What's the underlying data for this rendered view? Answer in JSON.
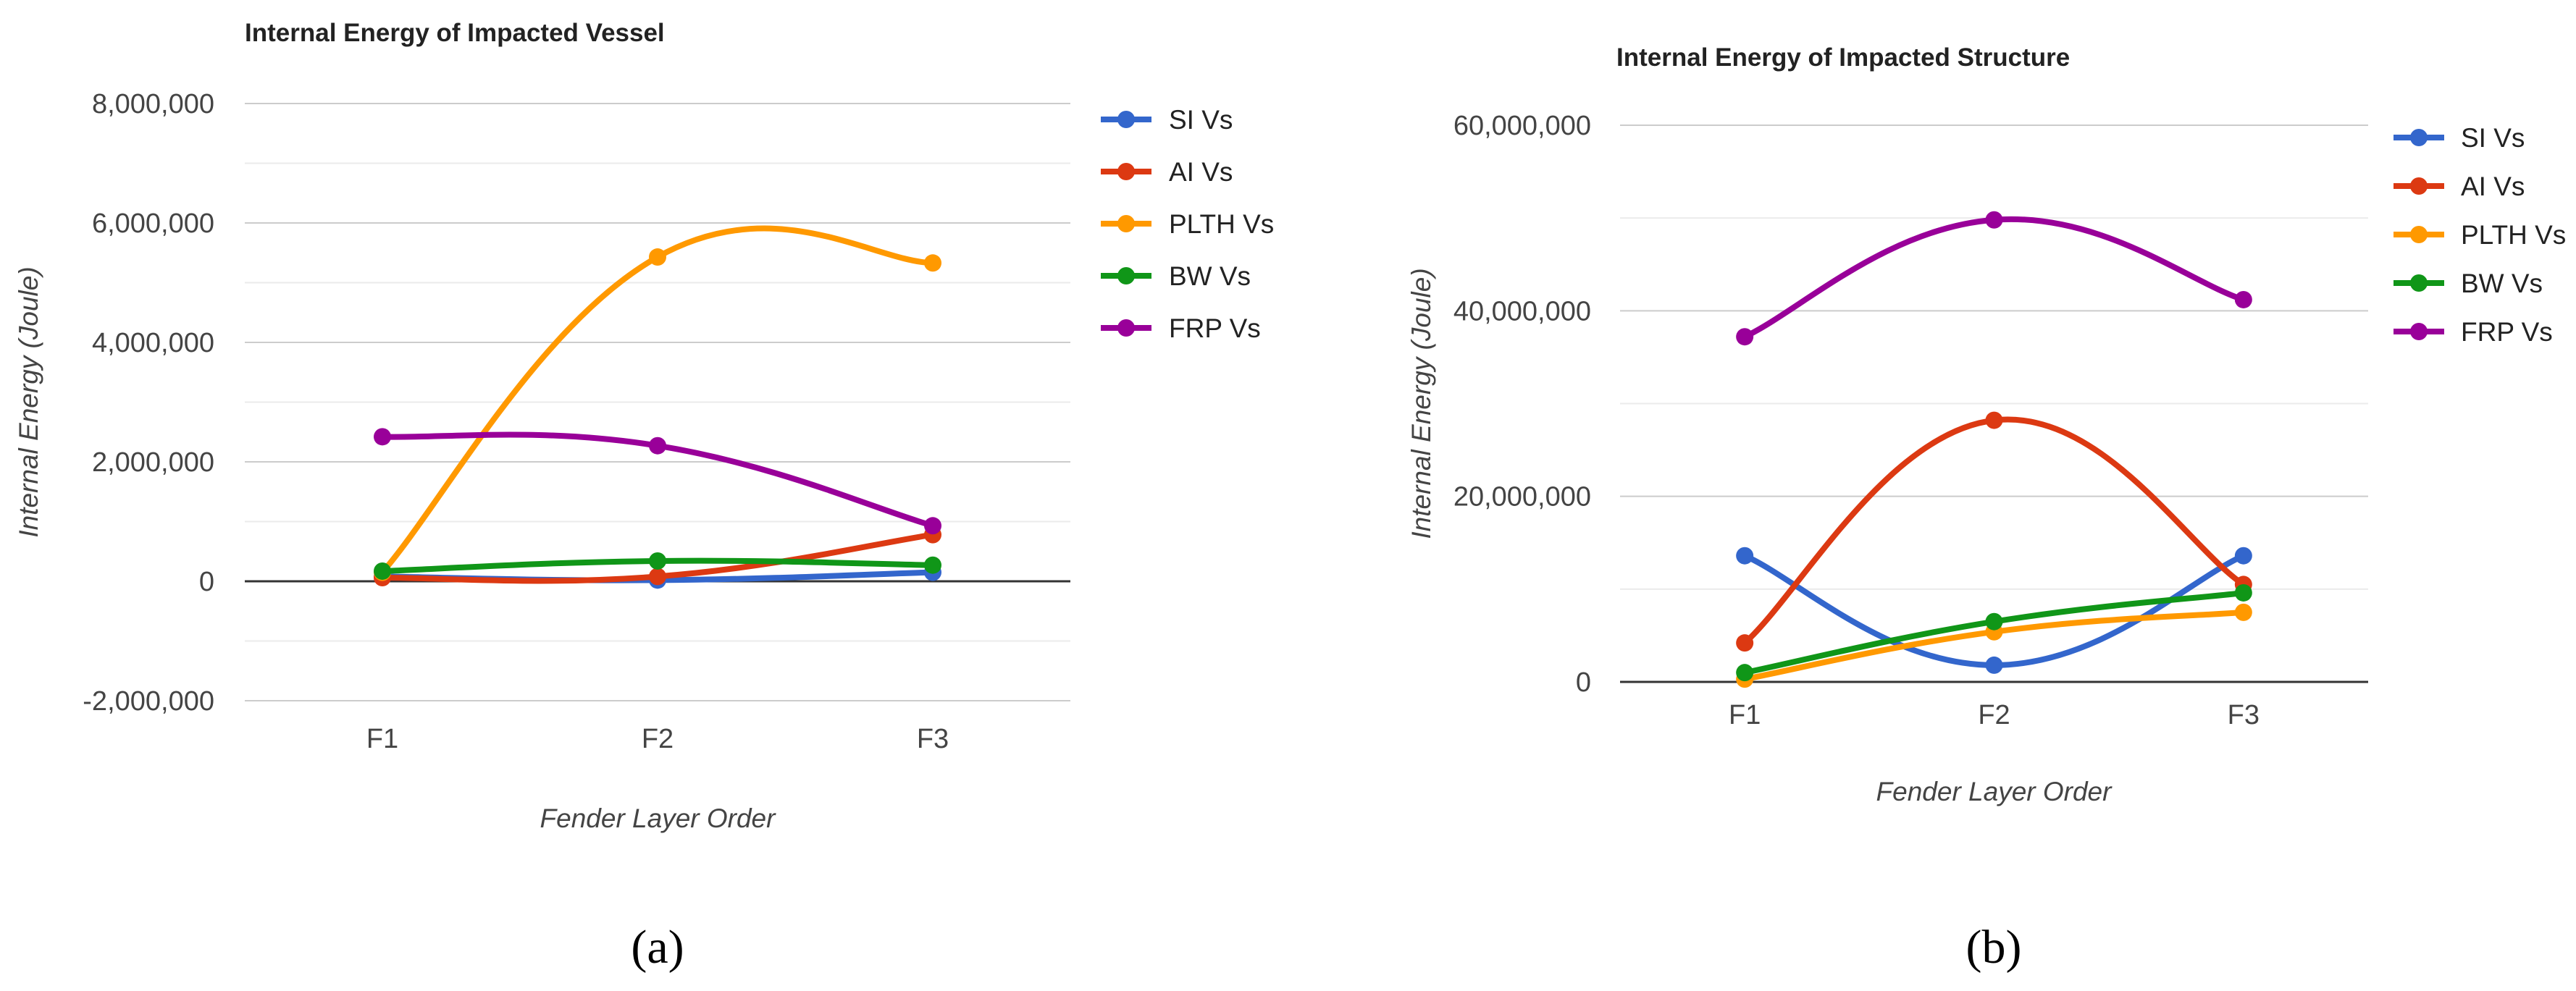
{
  "chart_data": [
    {
      "type": "line",
      "panel": "(a)",
      "title": "Internal Energy of Impacted Vessel",
      "xlabel": "Fender Layer Order",
      "ylabel": "Internal Energy (Joule)",
      "categories": [
        "F1",
        "F2",
        "F3"
      ],
      "ylim": [
        -2000000,
        8000000
      ],
      "yticks": [
        -2000000,
        0,
        2000000,
        4000000,
        6000000,
        8000000
      ],
      "ytick_labels": [
        "-2,000,000",
        "0",
        "2,000,000",
        "4,000,000",
        "6,000,000",
        "8,000,000"
      ],
      "legend_position": "right",
      "series": [
        {
          "name": "SI Vs",
          "color": "#3366cc",
          "values": [
            80000,
            20000,
            150000
          ]
        },
        {
          "name": "AI Vs",
          "color": "#dc3912",
          "values": [
            60000,
            80000,
            780000
          ]
        },
        {
          "name": "PLTH Vs",
          "color": "#ff9900",
          "values": [
            150000,
            5430000,
            5330000
          ]
        },
        {
          "name": "BW Vs",
          "color": "#109618",
          "values": [
            170000,
            340000,
            270000
          ]
        },
        {
          "name": "FRP Vs",
          "color": "#990099",
          "values": [
            2420000,
            2270000,
            930000
          ]
        }
      ]
    },
    {
      "type": "line",
      "panel": "(b)",
      "title": "Internal Energy of Impacted Structure",
      "xlabel": "Fender Layer Order",
      "ylabel": "Internal Energy (Joule)",
      "categories": [
        "F1",
        "F2",
        "F3"
      ],
      "ylim": [
        0,
        60000000
      ],
      "yticks": [
        0,
        20000000,
        40000000,
        60000000
      ],
      "ytick_labels": [
        "0",
        "20,000,000",
        "40,000,000",
        "60,000,000"
      ],
      "legend_position": "right",
      "series": [
        {
          "name": "SI Vs",
          "color": "#3366cc",
          "values": [
            13600000,
            1800000,
            13600000
          ]
        },
        {
          "name": "AI Vs",
          "color": "#dc3912",
          "values": [
            4200000,
            28200000,
            10500000
          ]
        },
        {
          "name": "PLTH Vs",
          "color": "#ff9900",
          "values": [
            300000,
            5400000,
            7500000
          ]
        },
        {
          "name": "BW Vs",
          "color": "#109618",
          "values": [
            1000000,
            6500000,
            9600000
          ]
        },
        {
          "name": "FRP Vs",
          "color": "#990099",
          "values": [
            37200000,
            49800000,
            41200000
          ]
        }
      ]
    }
  ]
}
